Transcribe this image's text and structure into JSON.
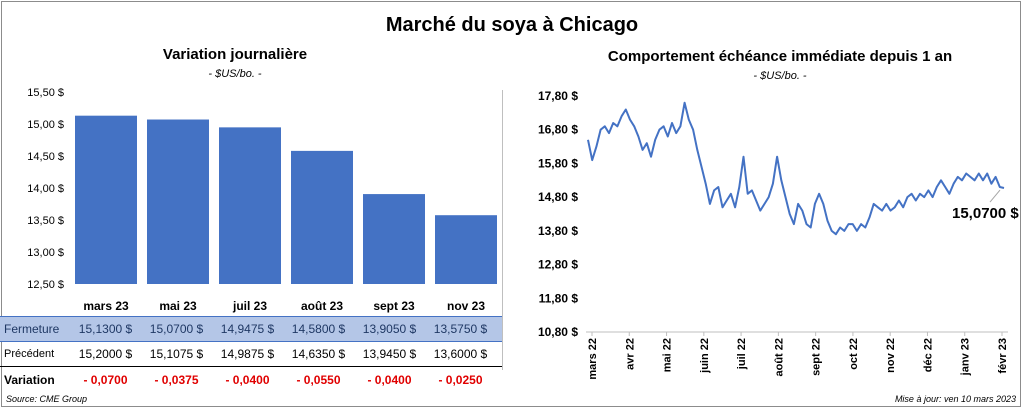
{
  "page": {
    "title": "Marché du soya à Chicago",
    "source": "Source: CME Group",
    "updated": "Mise à jour: ven 10 mars 2023"
  },
  "left": {
    "title": "Variation  journalière",
    "subtitle": "- $US/bo. -",
    "rows": {
      "close_label": "Fermeture",
      "prev_label": "Précédent",
      "var_label": "Variation"
    }
  },
  "right": {
    "title": "Comportement  échéance immédiate depuis 1 an",
    "subtitle": "- $US/bo. -",
    "last_value_label": "15,0700 $"
  },
  "colors": {
    "bar": "#4472c4",
    "line": "#4472c4",
    "negative": "#e00000",
    "highlight_row": "#b4c6e7"
  },
  "chart_data": [
    {
      "type": "bar",
      "title": "Variation  journalière",
      "ylabel": "- $US/bo. -",
      "ylim": [
        12.5,
        15.5
      ],
      "yticks": [
        "12,50 $",
        "13,00 $",
        "13,50 $",
        "14,00 $",
        "14,50 $",
        "15,00 $",
        "15,50 $"
      ],
      "categories": [
        "mars 23",
        "mai 23",
        "juil 23",
        "août 23",
        "sept 23",
        "nov 23"
      ],
      "values": [
        15.13,
        15.07,
        14.9475,
        14.58,
        13.905,
        13.575
      ],
      "table": {
        "close": [
          "15,1300  $",
          "15,0700  $",
          "14,9475  $",
          "14,5800  $",
          "13,9050  $",
          "13,5750  $"
        ],
        "previous": [
          "15,2000  $",
          "15,1075  $",
          "14,9875  $",
          "14,6350  $",
          "13,9450  $",
          "13,6000  $"
        ],
        "variation": [
          "- 0,0700",
          "- 0,0375",
          "- 0,0400",
          "- 0,0550",
          "- 0,0400",
          "- 0,0250"
        ]
      }
    },
    {
      "type": "line",
      "title": "Comportement  échéance immédiate depuis 1 an",
      "ylabel": "- $US/bo. -",
      "ylim": [
        10.8,
        17.8
      ],
      "yticks": [
        "10,80 $",
        "11,80 $",
        "12,80 $",
        "13,80 $",
        "14,80 $",
        "15,80 $",
        "16,80 $",
        "17,80 $"
      ],
      "x_labels": [
        "mars 22",
        "avr 22",
        "mai 22",
        "juin 22",
        "juil 22",
        "août 22",
        "sept 22",
        "oct 22",
        "nov 22",
        "déc 22",
        "janv 23",
        "févr 23"
      ],
      "series": [
        {
          "values": [
            16.5,
            15.9,
            16.3,
            16.8,
            16.9,
            16.7,
            17.0,
            16.9,
            17.2,
            17.4,
            17.1,
            16.9,
            16.6,
            16.2,
            16.4,
            16.0,
            16.5,
            16.8,
            16.9,
            16.6,
            17.0,
            16.7,
            16.9,
            17.6,
            17.1,
            16.8,
            16.2,
            15.7,
            15.2,
            14.6,
            15.0,
            15.1,
            14.5,
            14.7,
            14.9,
            14.5,
            15.1,
            16.0,
            14.9,
            15.0,
            14.7,
            14.4,
            14.6,
            14.8,
            15.2,
            16.0,
            15.3,
            14.8,
            14.3,
            14.0,
            14.6,
            14.4,
            14.0,
            13.9,
            14.6,
            14.9,
            14.6,
            14.1,
            13.8,
            13.7,
            13.9,
            13.8,
            14.0,
            14.0,
            13.8,
            14.0,
            13.9,
            14.2,
            14.6,
            14.5,
            14.4,
            14.6,
            14.4,
            14.5,
            14.7,
            14.5,
            14.8,
            14.9,
            14.7,
            14.9,
            14.8,
            15.0,
            14.8,
            15.1,
            15.3,
            15.1,
            14.9,
            15.2,
            15.4,
            15.3,
            15.5,
            15.4,
            15.3,
            15.5,
            15.3,
            15.5,
            15.2,
            15.4,
            15.1,
            15.07
          ]
        }
      ],
      "last_value": 15.07
    }
  ]
}
